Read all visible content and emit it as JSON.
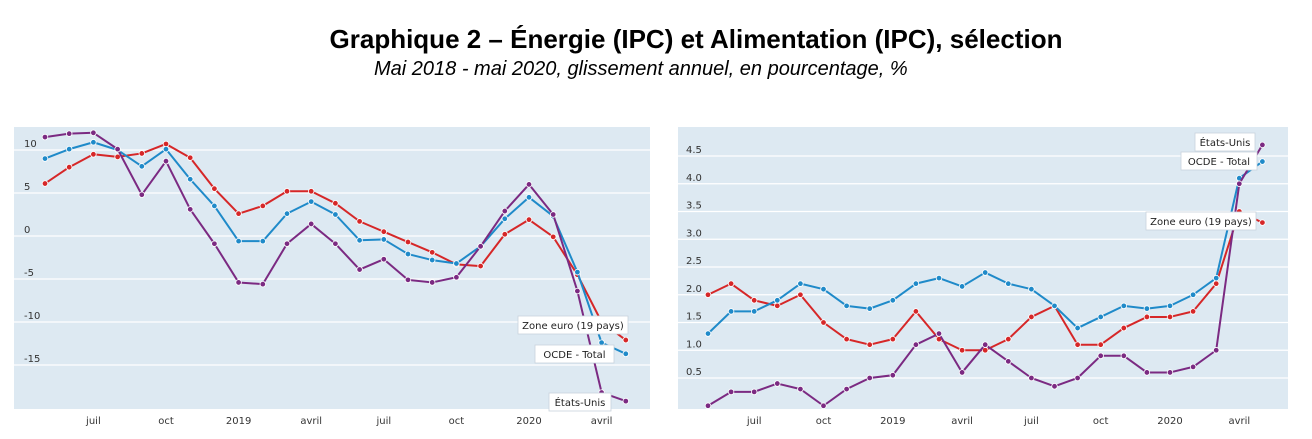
{
  "header": {
    "title": "Graphique 2 – Énergie (IPC) et Alimentation (IPC), sélection",
    "subtitle": "Mai 2018 - mai 2020, glissement annuel, en pourcentage, %"
  },
  "colors": {
    "plot_bg": "#dde9f2",
    "grid": "#ffffff",
    "zone_euro": "#d62728",
    "ocde": "#1f8ac9",
    "etats_unis": "#7b2a82"
  },
  "chart_data": [
    {
      "type": "line",
      "x_ticks": [
        "juil",
        "oct",
        "2019",
        "avril",
        "juil",
        "oct",
        "2020",
        "avril"
      ],
      "y_ticks": [
        "10",
        "5",
        "0",
        "-5",
        "-10",
        "-15"
      ],
      "ylim": [
        -20,
        13
      ],
      "grid": true,
      "legend": "inline-labels-right",
      "series": [
        {
          "name": "Zone euro (19 pays)",
          "key": "zone_euro",
          "values": [
            6.1,
            8.0,
            9.5,
            9.2,
            9.6,
            10.7,
            9.1,
            5.5,
            2.6,
            3.5,
            5.2,
            5.2,
            3.8,
            1.7,
            0.5,
            -0.7,
            -1.9,
            -3.3,
            -3.5,
            0.2,
            1.9,
            -0.1,
            -4.5,
            -10.0,
            -12.1
          ]
        },
        {
          "name": "OCDE - Total",
          "key": "ocde",
          "values": [
            9.0,
            10.1,
            10.9,
            10.0,
            8.1,
            10.1,
            6.6,
            3.5,
            -0.6,
            -0.6,
            2.6,
            4.0,
            2.5,
            -0.5,
            -0.4,
            -2.1,
            -2.8,
            -3.2,
            -1.2,
            2.0,
            4.5,
            2.3,
            -4.2,
            -12.4,
            -13.7
          ]
        },
        {
          "name": "États-Unis",
          "key": "etats_unis",
          "values": [
            11.5,
            11.9,
            12.0,
            10.1,
            4.8,
            8.7,
            3.1,
            -0.9,
            -5.4,
            -5.6,
            -0.9,
            1.4,
            -0.9,
            -3.9,
            -2.7,
            -5.1,
            -5.4,
            -4.8,
            -1.2,
            2.9,
            6.0,
            2.5,
            -6.4,
            -18.2,
            -19.2
          ]
        }
      ]
    },
    {
      "type": "line",
      "x_ticks": [
        "juil",
        "oct",
        "2019",
        "avril",
        "juil",
        "oct",
        "2020",
        "avril"
      ],
      "y_ticks": [
        "4.5",
        "4.0",
        "3.5",
        "3.0",
        "2.5",
        "2.0",
        "1.5",
        "1.0",
        "0.5"
      ],
      "ylim": [
        0,
        4.95
      ],
      "grid": true,
      "legend": "inline-labels-right",
      "series": [
        {
          "name": "Zone euro (19 pays)",
          "key": "zone_euro",
          "values": [
            2.0,
            2.2,
            1.9,
            1.8,
            2.0,
            1.5,
            1.2,
            1.1,
            1.2,
            1.7,
            1.2,
            1.0,
            1.0,
            1.2,
            1.6,
            1.8,
            1.1,
            1.1,
            1.4,
            1.6,
            1.6,
            1.7,
            2.2,
            3.5,
            3.3
          ]
        },
        {
          "name": "OCDE - Total",
          "key": "ocde",
          "values": [
            1.3,
            1.7,
            1.7,
            1.9,
            2.2,
            2.1,
            1.8,
            1.75,
            1.9,
            2.2,
            2.3,
            2.15,
            2.4,
            2.2,
            2.1,
            1.8,
            1.4,
            1.6,
            1.8,
            1.75,
            1.8,
            2.0,
            2.3,
            4.1,
            4.4
          ]
        },
        {
          "name": "États-Unis",
          "key": "etats_unis",
          "values": [
            0.0,
            0.25,
            0.25,
            0.4,
            0.3,
            0.0,
            0.3,
            0.5,
            0.55,
            1.1,
            1.3,
            0.6,
            1.1,
            0.8,
            0.5,
            0.35,
            0.5,
            0.9,
            0.9,
            0.6,
            0.6,
            0.7,
            1.0,
            4.0,
            4.7
          ]
        }
      ]
    }
  ]
}
